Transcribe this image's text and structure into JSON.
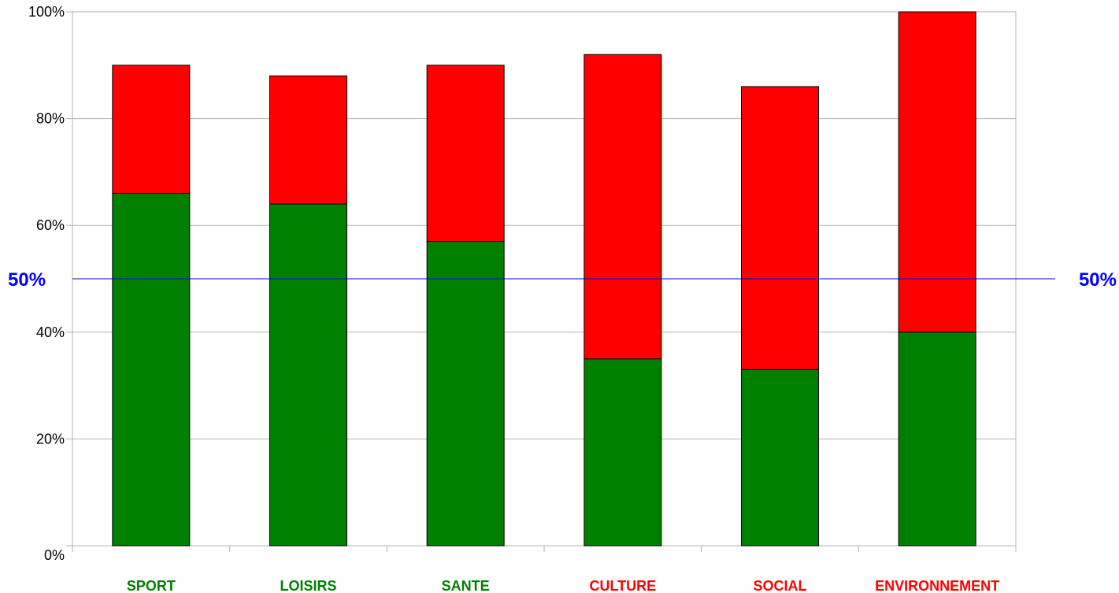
{
  "chart_data": {
    "type": "bar",
    "stacked": true,
    "categories": [
      "SPORT",
      "LOISIRS",
      "SANTE",
      "CULTURE",
      "SOCIAL",
      "ENVIRONNEMENT"
    ],
    "category_label_colors": [
      "#008000",
      "#008000",
      "#008000",
      "#ff0000",
      "#ff0000",
      "#ff0000"
    ],
    "series": [
      {
        "color": "#008000",
        "values": [
          66,
          64,
          57,
          35,
          33,
          40
        ]
      },
      {
        "color": "#ff0000",
        "values": [
          24,
          24,
          33,
          57,
          53,
          60
        ]
      }
    ],
    "ylim": [
      0,
      100
    ],
    "yticks": [
      0,
      20,
      40,
      60,
      80,
      100
    ],
    "ytick_labels": [
      "0%",
      "20%",
      "40%",
      "60%",
      "80%",
      "100%"
    ],
    "gridlines": true,
    "reference_line": {
      "value": 50,
      "label": "50%",
      "color": "#0000cc",
      "label_color": "#0000ff"
    },
    "title": "",
    "xlabel": "",
    "ylabel": ""
  }
}
